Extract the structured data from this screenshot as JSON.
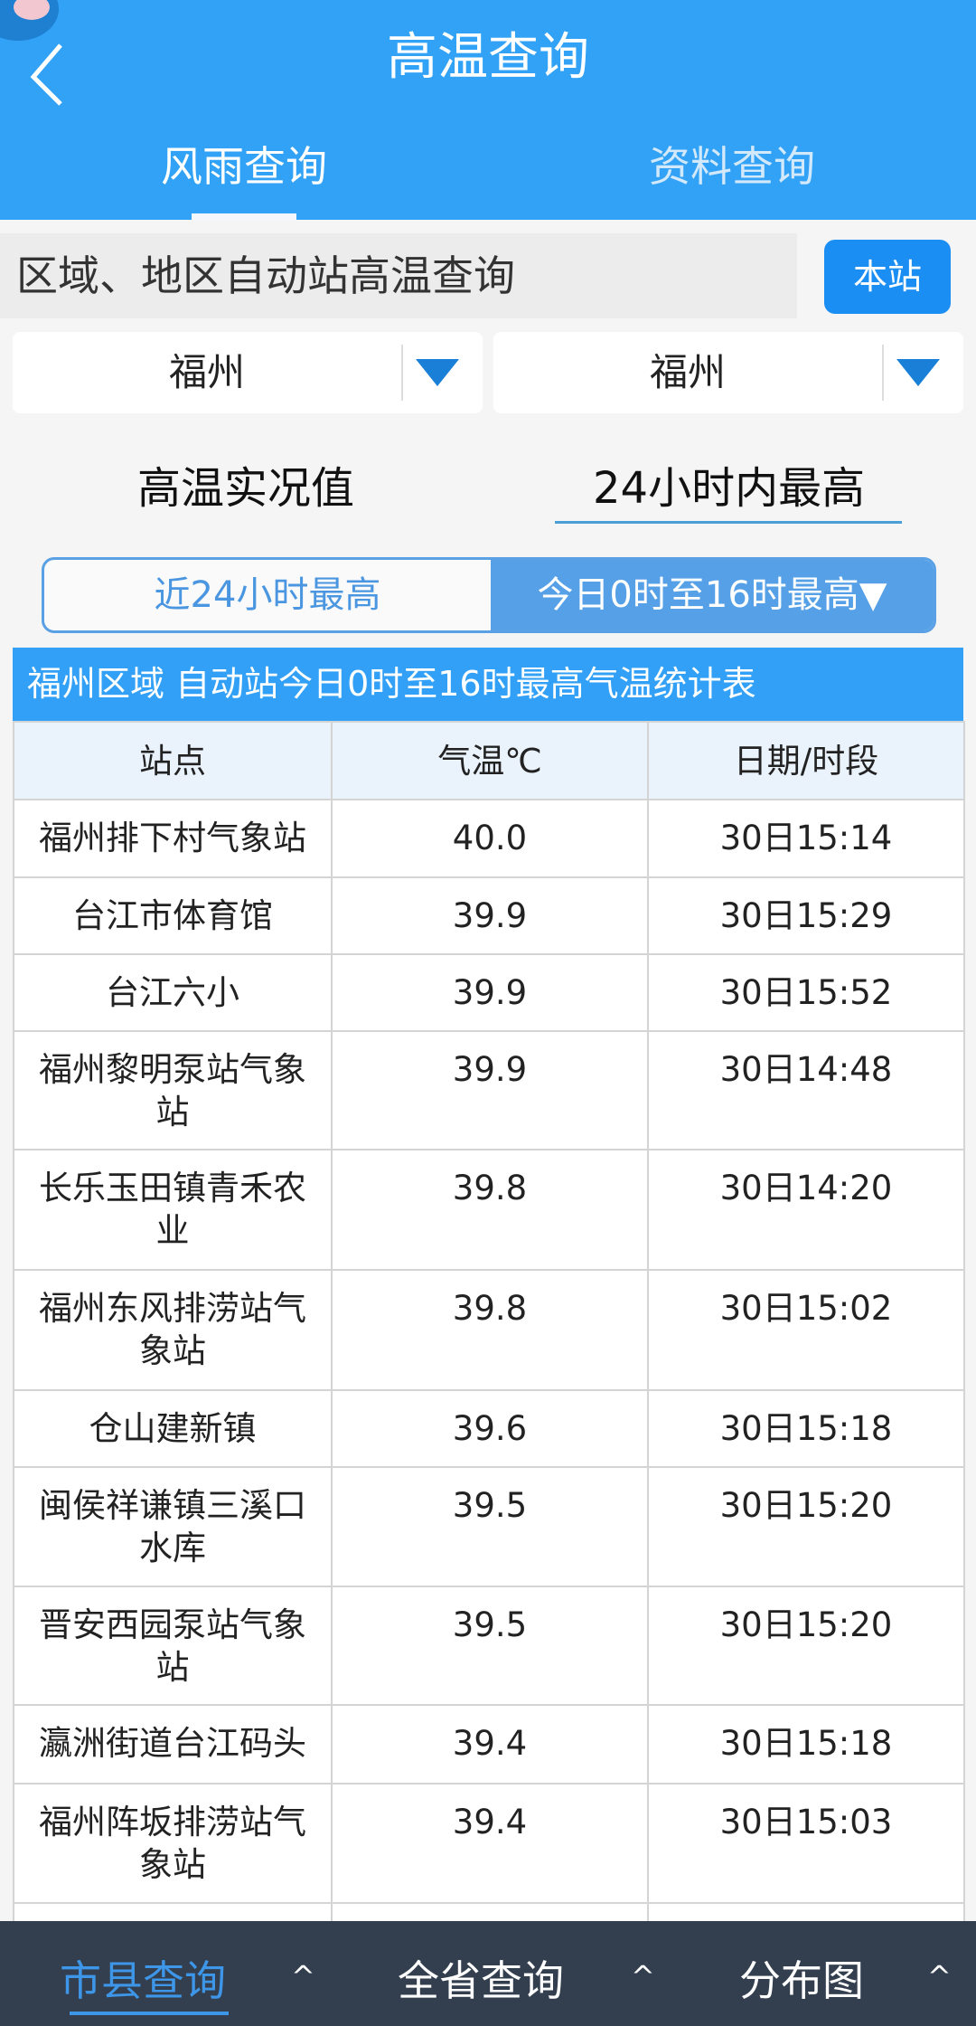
{
  "header": {
    "title": "高温查询",
    "tabs": [
      {
        "label": "风雨查询",
        "active": true
      },
      {
        "label": "资料查询",
        "active": false
      }
    ]
  },
  "search": {
    "label": "区域、地区自动站高温查询",
    "button": "本站"
  },
  "dropdowns": [
    {
      "value": "福州"
    },
    {
      "value": "福州"
    }
  ],
  "subtabs": [
    {
      "label": "高温实况值",
      "active": false
    },
    {
      "label": "24小时内最高",
      "active": true
    }
  ],
  "segment": {
    "left": "近24小时最高",
    "right": "今日0时至16时最高▼"
  },
  "table": {
    "caption": "福州区域 自动站今日0时至16时最高气温统计表",
    "headers": [
      "站点",
      "气温℃",
      "日期/时段"
    ],
    "rows": [
      [
        "福州排下村气象站",
        "40.0",
        "30日15:14"
      ],
      [
        "台江市体育馆",
        "39.9",
        "30日15:29"
      ],
      [
        "台江六小",
        "39.9",
        "30日15:52"
      ],
      [
        "福州黎明泵站气象站",
        "39.9",
        "30日14:48"
      ],
      [
        "长乐玉田镇青禾农业",
        "39.8",
        "30日14:20"
      ],
      [
        "福州东风排涝站气象站",
        "39.8",
        "30日15:02"
      ],
      [
        "仓山建新镇",
        "39.6",
        "30日15:18"
      ],
      [
        "闽侯祥谦镇三溪口水库",
        "39.5",
        "30日15:20"
      ],
      [
        "晋安西园泵站气象站",
        "39.5",
        "30日15:20"
      ],
      [
        "瀛洲街道台江码头",
        "39.4",
        "30日15:18"
      ],
      [
        "福州阵坂排涝站气象站",
        "39.4",
        "30日15:03"
      ]
    ]
  },
  "bottom_nav": [
    {
      "label": "市县查询",
      "active": true
    },
    {
      "label": "全省查询",
      "active": false
    },
    {
      "label": "分布图",
      "active": false
    }
  ],
  "bottom_nav_caret": "^",
  "colors": {
    "primary": "#31a2f6",
    "button": "#1b8ef4",
    "nav_bg": "#333f4e",
    "nav_active": "#3e96e8"
  }
}
